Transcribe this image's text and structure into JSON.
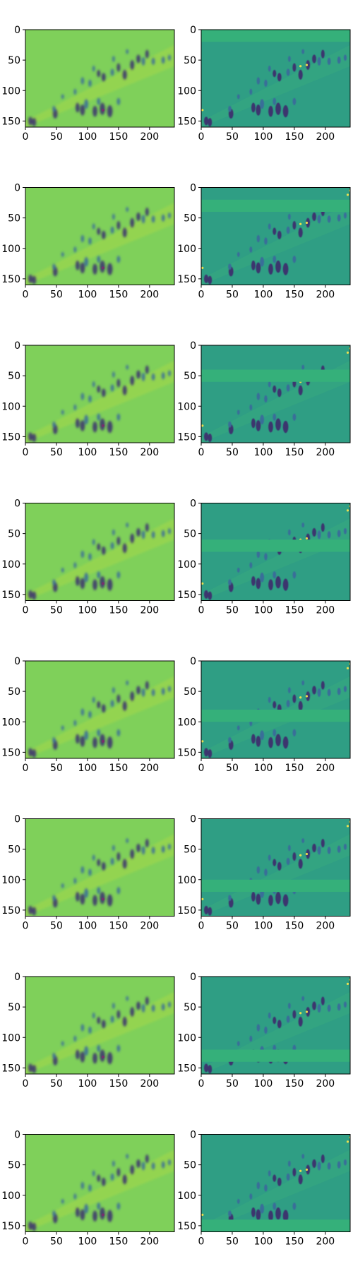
{
  "figure": {
    "rows": 8,
    "cols": 2,
    "colors": {
      "bg_left": "#7fd05a",
      "bg_right": "#2f9e84",
      "figure_dark": "#3b2f6e",
      "figure_mid": "#3a6b9a",
      "highlight": "#ffe64a",
      "band_color": "#35b07a",
      "axis": "#000000"
    }
  },
  "chart_data": {
    "type": "heatmap",
    "colormap": "viridis",
    "grid": false,
    "xlim": [
      0,
      240
    ],
    "ylim": [
      160,
      0
    ],
    "xticks": [
      0,
      50,
      100,
      150,
      200
    ],
    "yticks": [
      0,
      50,
      100,
      150
    ],
    "xtick_labels": [
      "0",
      "50",
      "100",
      "150",
      "200"
    ],
    "ytick_labels": [
      "0",
      "50",
      "100",
      "150"
    ],
    "panels": [
      {
        "row": 1,
        "col": 1,
        "variant": "smoothed"
      },
      {
        "row": 1,
        "col": 2,
        "variant": "detail",
        "band_rows": [
          0,
          20
        ]
      },
      {
        "row": 2,
        "col": 1,
        "variant": "smoothed"
      },
      {
        "row": 2,
        "col": 2,
        "variant": "detail",
        "band_rows": [
          20,
          40
        ]
      },
      {
        "row": 3,
        "col": 1,
        "variant": "smoothed"
      },
      {
        "row": 3,
        "col": 2,
        "variant": "detail",
        "band_rows": [
          40,
          60
        ]
      },
      {
        "row": 4,
        "col": 1,
        "variant": "smoothed"
      },
      {
        "row": 4,
        "col": 2,
        "variant": "detail",
        "band_rows": [
          60,
          80
        ]
      },
      {
        "row": 5,
        "col": 1,
        "variant": "smoothed"
      },
      {
        "row": 5,
        "col": 2,
        "variant": "detail",
        "band_rows": [
          80,
          100
        ]
      },
      {
        "row": 6,
        "col": 1,
        "variant": "smoothed"
      },
      {
        "row": 6,
        "col": 2,
        "variant": "detail",
        "band_rows": [
          100,
          120
        ]
      },
      {
        "row": 7,
        "col": 1,
        "variant": "smoothed"
      },
      {
        "row": 7,
        "col": 2,
        "variant": "detail",
        "band_rows": [
          120,
          140
        ]
      },
      {
        "row": 8,
        "col": 1,
        "variant": "smoothed"
      },
      {
        "row": 8,
        "col": 2,
        "variant": "detail",
        "band_rows": [
          140,
          160
        ]
      }
    ]
  }
}
